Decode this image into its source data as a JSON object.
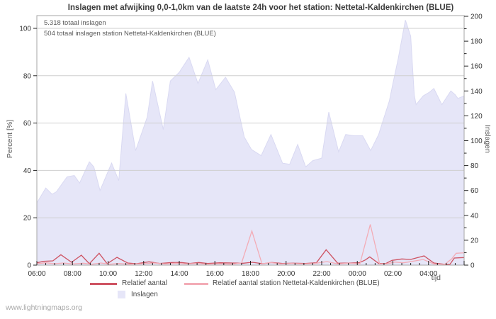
{
  "title": "Inslagen met afwijking 0,0-1,0km van de laatste 24h voor het station: Nettetal-Kaldenkirchen (BLUE)",
  "annotations": {
    "total": "5.318 totaal inslagen",
    "station_total": "504 totaal inslagen station Nettetal-Kaldenkirchen (BLUE)"
  },
  "axes": {
    "left": {
      "label": "Percent  [%]",
      "ticks": [
        0,
        20,
        40,
        60,
        80,
        100
      ],
      "range": [
        0,
        100
      ]
    },
    "right": {
      "label": "Inslagen",
      "ticks": [
        0,
        20,
        40,
        60,
        80,
        100,
        120,
        140,
        160,
        180,
        200
      ],
      "minor_step": 10,
      "range": [
        0,
        200
      ]
    },
    "x": {
      "label": "tijd",
      "tick_labels": [
        "06:00",
        "08:00",
        "10:00",
        "12:00",
        "14:00",
        "16:00",
        "18:00",
        "20:00",
        "22:00",
        "00:00",
        "02:00",
        "04:00"
      ],
      "tick_hours": [
        0,
        2,
        4,
        6,
        8,
        10,
        12,
        14,
        16,
        18,
        20,
        22
      ],
      "minor_step_hours": 0.5,
      "range_hours": [
        0,
        24
      ]
    }
  },
  "legend": {
    "items": [
      {
        "label": "Relatief aantal",
        "swatch": "line",
        "color": "#ce5362"
      },
      {
        "label": "Relatief aantal station Nettetal-Kaldenkirchen (BLUE)",
        "swatch": "line",
        "color": "#f3acb6"
      },
      {
        "label": "Inslagen",
        "swatch": "area",
        "color": "#e6e6f8"
      }
    ]
  },
  "footer": "www.lightningmaps.org",
  "colors": {
    "area_fill": "#e6e6f8",
    "area_edge": "#d9d9f2",
    "line_rel": "#ce5362",
    "line_rel_station": "#f3acb6",
    "grid": "#cfcfcf",
    "plot_border": "#a6a6a6",
    "tick": "#222222",
    "tick_text": "#333333"
  },
  "chart_data": {
    "type": "area",
    "note": "x = hours since 06:00 local time; area uses right axis (Inslagen 0-200), lines use left axis (Percent 0-100)",
    "x_range": [
      0,
      24
    ],
    "left_range": [
      0,
      100
    ],
    "right_range": [
      0,
      200
    ],
    "grid": "horizontal",
    "legend_position": "bottom",
    "series": [
      {
        "name": "Inslagen",
        "type": "area",
        "axis": "right",
        "color": "#e6e6f8",
        "points": [
          [
            0,
            50
          ],
          [
            0.5,
            62
          ],
          [
            0.85,
            57
          ],
          [
            1.1,
            59
          ],
          [
            1.7,
            71
          ],
          [
            2.1,
            72
          ],
          [
            2.4,
            66
          ],
          [
            2.95,
            83
          ],
          [
            3.2,
            79
          ],
          [
            3.55,
            60
          ],
          [
            4.2,
            82
          ],
          [
            4.6,
            68
          ],
          [
            5.0,
            138
          ],
          [
            5.55,
            92
          ],
          [
            6.2,
            119
          ],
          [
            6.5,
            148
          ],
          [
            7.1,
            109
          ],
          [
            7.5,
            148
          ],
          [
            8.0,
            155
          ],
          [
            8.55,
            167
          ],
          [
            9.05,
            146
          ],
          [
            9.6,
            165
          ],
          [
            10.05,
            141
          ],
          [
            10.6,
            151
          ],
          [
            11.1,
            139
          ],
          [
            11.65,
            103
          ],
          [
            12.05,
            93
          ],
          [
            12.6,
            88
          ],
          [
            13.15,
            105
          ],
          [
            13.8,
            82
          ],
          [
            14.2,
            81
          ],
          [
            14.65,
            97
          ],
          [
            15.1,
            79
          ],
          [
            15.5,
            84
          ],
          [
            16.0,
            86
          ],
          [
            16.4,
            123
          ],
          [
            16.95,
            91
          ],
          [
            17.35,
            105
          ],
          [
            17.8,
            104
          ],
          [
            18.3,
            104
          ],
          [
            18.75,
            92
          ],
          [
            19.2,
            105
          ],
          [
            19.4,
            114
          ],
          [
            19.8,
            132
          ],
          [
            20.0,
            146
          ],
          [
            20.3,
            166
          ],
          [
            20.7,
            197
          ],
          [
            21.0,
            184
          ],
          [
            21.2,
            137
          ],
          [
            21.3,
            129
          ],
          [
            21.7,
            136
          ],
          [
            22.05,
            139
          ],
          [
            22.3,
            142
          ],
          [
            22.75,
            129
          ],
          [
            23.25,
            140
          ],
          [
            23.5,
            137
          ],
          [
            23.65,
            134
          ],
          [
            24,
            136
          ]
        ]
      },
      {
        "name": "Relatief aantal",
        "type": "line",
        "axis": "left",
        "color": "#ce5362",
        "points": [
          [
            0,
            1.0
          ],
          [
            0.35,
            1.6
          ],
          [
            0.9,
            1.8
          ],
          [
            1.35,
            4.4
          ],
          [
            1.95,
            1.2
          ],
          [
            2.5,
            4.2
          ],
          [
            2.95,
            0.6
          ],
          [
            3.5,
            5.0
          ],
          [
            3.95,
            0.6
          ],
          [
            4.5,
            3.3
          ],
          [
            5.1,
            0.9
          ],
          [
            5.6,
            0.6
          ],
          [
            6.3,
            1.4
          ],
          [
            6.9,
            0.7
          ],
          [
            7.6,
            1.1
          ],
          [
            8.1,
            1.1
          ],
          [
            8.6,
            0.7
          ],
          [
            9.1,
            1.1
          ],
          [
            9.6,
            0.7
          ],
          [
            10.3,
            1.0
          ],
          [
            11.0,
            0.9
          ],
          [
            11.6,
            0.8
          ],
          [
            12.1,
            1.2
          ],
          [
            12.7,
            0.6
          ],
          [
            13.2,
            1.1
          ],
          [
            13.8,
            0.7
          ],
          [
            14.4,
            0.8
          ],
          [
            15.1,
            0.7
          ],
          [
            15.7,
            1.0
          ],
          [
            16.25,
            6.5
          ],
          [
            16.9,
            0.8
          ],
          [
            17.6,
            0.9
          ],
          [
            18.1,
            1.0
          ],
          [
            18.45,
            2.2
          ],
          [
            18.7,
            3.5
          ],
          [
            19.2,
            0.7
          ],
          [
            19.6,
            0.7
          ],
          [
            19.95,
            2.0
          ],
          [
            20.5,
            2.6
          ],
          [
            21.0,
            2.4
          ],
          [
            21.75,
            3.9
          ],
          [
            22.3,
            0.9
          ],
          [
            22.85,
            0.4
          ],
          [
            23.2,
            0.3
          ],
          [
            23.45,
            3.0
          ],
          [
            24,
            3.2
          ]
        ]
      },
      {
        "name": "Relatief aantal station Nettetal-Kaldenkirchen (BLUE)",
        "type": "line",
        "axis": "left",
        "color": "#f3acb6",
        "points": [
          [
            0,
            0.6
          ],
          [
            0.5,
            1.0
          ],
          [
            1.0,
            0.6
          ],
          [
            1.5,
            0.9
          ],
          [
            2.0,
            0.5
          ],
          [
            2.6,
            0.8
          ],
          [
            3.1,
            0.4
          ],
          [
            3.6,
            0.9
          ],
          [
            4.1,
            0.4
          ],
          [
            4.6,
            0.7
          ],
          [
            5.2,
            0.4
          ],
          [
            6.0,
            0.6
          ],
          [
            6.6,
            0.9
          ],
          [
            7.2,
            0.5
          ],
          [
            7.8,
            0.8
          ],
          [
            8.4,
            0.5
          ],
          [
            9.0,
            0.7
          ],
          [
            9.6,
            0.4
          ],
          [
            10.2,
            0.6
          ],
          [
            10.9,
            0.4
          ],
          [
            11.5,
            0.9
          ],
          [
            12.08,
            14.4
          ],
          [
            12.65,
            0.5
          ],
          [
            13.1,
            1.1
          ],
          [
            13.7,
            0.5
          ],
          [
            14.3,
            0.7
          ],
          [
            15.0,
            0.5
          ],
          [
            15.6,
            0.7
          ],
          [
            16.3,
            1.5
          ],
          [
            16.9,
            0.5
          ],
          [
            17.5,
            0.8
          ],
          [
            18.15,
            0.6
          ],
          [
            18.73,
            17.2
          ],
          [
            19.25,
            0.5
          ],
          [
            19.7,
            0.6
          ],
          [
            20.1,
            1.3
          ],
          [
            20.6,
            1.0
          ],
          [
            21.1,
            1.6
          ],
          [
            21.7,
            2.4
          ],
          [
            22.3,
            0.5
          ],
          [
            22.9,
            0.3
          ],
          [
            23.3,
            2.6
          ],
          [
            23.55,
            5.0
          ],
          [
            24,
            5.2
          ]
        ]
      }
    ]
  }
}
